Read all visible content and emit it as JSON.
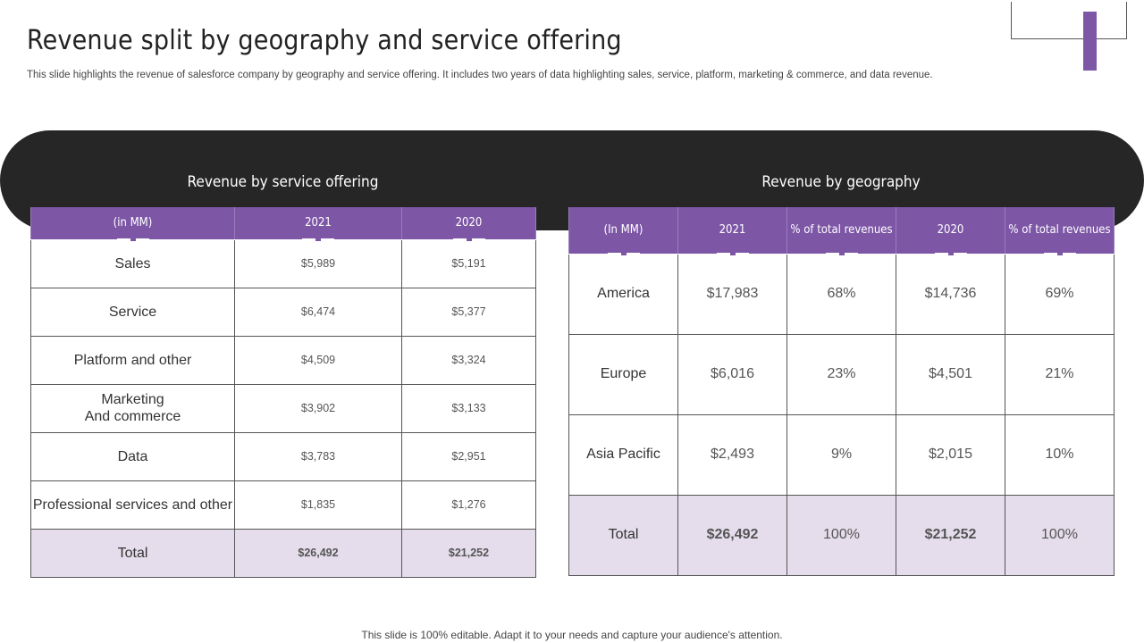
{
  "header": {
    "title": "Revenue split by geography and service offering",
    "subtitle": "This slide highlights the revenue of salesforce company by geography and service offering. It includes two years of data highlighting sales, service, platform, marketing & commerce, and data revenue."
  },
  "service_table": {
    "heading": "Revenue by service offering",
    "columns": [
      "(in MM)",
      "2021",
      "2020"
    ],
    "rows": [
      {
        "label": "Sales",
        "v2021": "$5,989",
        "v2020": "$5,191"
      },
      {
        "label": "Service",
        "v2021": "$6,474",
        "v2020": "$5,377"
      },
      {
        "label": "Platform and other",
        "v2021": "$4,509",
        "v2020": "$3,324"
      },
      {
        "label": "Marketing\nAnd commerce",
        "v2021": "$3,902",
        "v2020": "$3,133"
      },
      {
        "label": "Data",
        "v2021": "$3,783",
        "v2020": "$2,951"
      },
      {
        "label": "Professional services and other",
        "v2021": "$1,835",
        "v2020": "$1,276"
      }
    ],
    "total": {
      "label": "Total",
      "v2021": "$26,492",
      "v2020": "$21,252"
    }
  },
  "geo_table": {
    "heading": "Revenue by geography",
    "columns": [
      "(In MM)",
      "2021",
      "% of total revenues",
      "2020",
      "% of total revenues"
    ],
    "rows": [
      {
        "label": "America",
        "v2021": "$17,983",
        "p2021": "68%",
        "v2020": "$14,736",
        "p2020": "69%"
      },
      {
        "label": "Europe",
        "v2021": "$6,016",
        "p2021": "23%",
        "v2020": "$4,501",
        "p2020": "21%"
      },
      {
        "label": "Asia Pacific",
        "v2021": "$2,493",
        "p2021": "9%",
        "v2020": "$2,015",
        "p2020": "10%"
      }
    ],
    "total": {
      "label": "Total",
      "v2021": "$26,492",
      "p2021": "100%",
      "v2020": "$21,252",
      "p2020": "100%"
    }
  },
  "footer": "This slide is 100% editable. Adapt it to your needs and capture your audience's attention.",
  "colors": {
    "accent": "#7d56a6",
    "banner": "#262626",
    "total_row": "#e5ddeb"
  }
}
